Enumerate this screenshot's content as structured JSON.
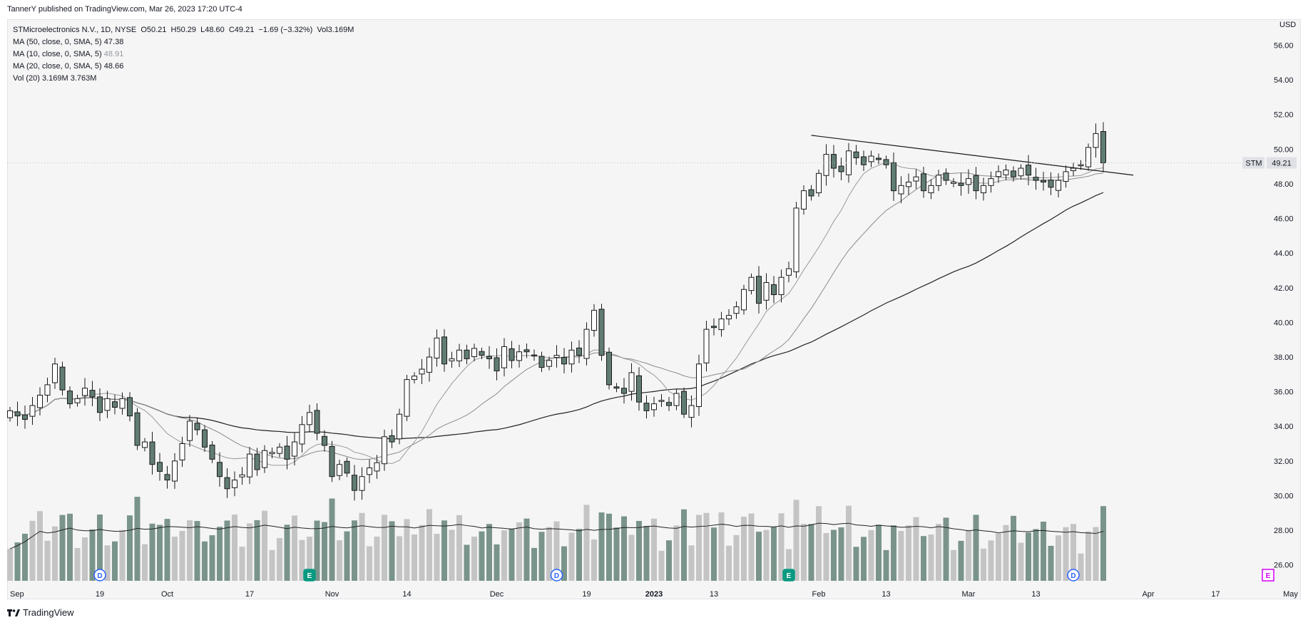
{
  "header": {
    "published_line": "TannerY published on TradingView.com, Mar 26, 2023 17:20 UTC-4"
  },
  "legend": {
    "symbol_line": "STMicroelectronics N.V., 1D, NYSE  O50.21  H50.29  L48.60  C49.21  −1.69 (−3.32%)  Vol3.169M",
    "ma50": {
      "label": "MA (50, close, 0, SMA, 5)",
      "value": "47.38"
    },
    "ma10": {
      "label": "MA (10, close, 0, SMA, 5)",
      "value": "48.91"
    },
    "ma20": {
      "label": "MA (20, close, 0, SMA, 5)",
      "value": "48.66"
    },
    "vol": {
      "label": "Vol (20)",
      "value1": "3.169M",
      "value2": "3.763M"
    }
  },
  "footer": {
    "brand": "TradingView"
  },
  "colors": {
    "background": "#f5f5f5",
    "up_body": "#ffffff",
    "down_body": "#617c73",
    "candle_outline": "#1a1a1a",
    "vol_up": "#c4c4c4",
    "vol_down": "#7a948b",
    "ma50": "#222222",
    "ma10": "#9a9a9a",
    "ma20": "#8a8a8a",
    "price_tag": "#dfe1e5",
    "dividend_badge": "#2962ff",
    "earnings_badge": "#089981",
    "future_earnings_badge": "#d500f9"
  },
  "chart_data": {
    "type": "candlestick",
    "symbol": "STM",
    "currency": "USD",
    "last_price_label": "49.21",
    "ylim": [
      25.0,
      57.5
    ],
    "y_ticks": [
      "56.00",
      "54.00",
      "52.00",
      "50.00",
      "48.00",
      "46.00",
      "44.00",
      "42.00",
      "40.00",
      "38.00",
      "36.00",
      "34.00",
      "32.00",
      "30.00",
      "28.00",
      "26.00"
    ],
    "x_labels": [
      {
        "label": "Sep",
        "index": 0
      },
      {
        "label": "19",
        "index": 12
      },
      {
        "label": "Oct",
        "index": 21
      },
      {
        "label": "17",
        "index": 32
      },
      {
        "label": "Nov",
        "index": 43
      },
      {
        "label": "14",
        "index": 53
      },
      {
        "label": "Dec",
        "index": 65
      },
      {
        "label": "19",
        "index": 77
      },
      {
        "label": "2023",
        "index": 86
      },
      {
        "label": "13",
        "index": 94
      },
      {
        "label": "Feb",
        "index": 108
      },
      {
        "label": "13",
        "index": 117
      },
      {
        "label": "Mar",
        "index": 128
      },
      {
        "label": "13",
        "index": 137
      },
      {
        "label": "Apr",
        "index": 152
      },
      {
        "label": "17",
        "index": 161
      },
      {
        "label": "May",
        "index": 171
      }
    ],
    "events": [
      {
        "type": "D",
        "index": 12
      },
      {
        "type": "E",
        "index": 40
      },
      {
        "type": "D",
        "index": 73
      },
      {
        "type": "E",
        "index": 104
      },
      {
        "type": "D",
        "index": 142
      },
      {
        "type": "E",
        "index": 168,
        "future": true
      }
    ],
    "trendline": [
      [
        107,
        50.8
      ],
      [
        150,
        48.5
      ]
    ],
    "closes": [
      34.9,
      34.6,
      34.4,
      35.2,
      35.8,
      36.4,
      37.6,
      36.1,
      35.3,
      35.6,
      36.2,
      35.7,
      34.8,
      35.6,
      35.1,
      35.6,
      34.6,
      32.9,
      33.1,
      31.8,
      31.4,
      30.9,
      32.0,
      33.0,
      34.3,
      33.8,
      32.8,
      32.1,
      31.1,
      30.4,
      30.9,
      31.2,
      32.4,
      31.5,
      32.6,
      32.5,
      32.8,
      32.1,
      33.1,
      34.1,
      34.8,
      33.6,
      32.9,
      31.1,
      31.8,
      31.3,
      30.3,
      31.1,
      31.6,
      31.9,
      33.4,
      33.1,
      34.7,
      36.7,
      36.9,
      37.3,
      38.0,
      39.1,
      37.6,
      37.9,
      38.4,
      37.9,
      38.5,
      38.1,
      37.9,
      37.2,
      38.6,
      37.8,
      38.3,
      38.3,
      38.1,
      37.4,
      37.8,
      38.1,
      37.6,
      38.4,
      38.1,
      39.6,
      40.7,
      38.1,
      36.4,
      36.2,
      35.9,
      37.1,
      35.4,
      34.9,
      35.3,
      35.5,
      35.2,
      35.9,
      34.7,
      35.2,
      37.6,
      39.6,
      39.7,
      40.2,
      40.4,
      40.9,
      41.9,
      42.6,
      41.1,
      42.3,
      41.6,
      42.6,
      43.1,
      46.6,
      47.6,
      47.3,
      48.6,
      49.7,
      48.9,
      48.7,
      49.9,
      49.5,
      49.1,
      49.6,
      49.4,
      49.1,
      47.6,
      47.9,
      48.1,
      48.4,
      47.6,
      47.9,
      48.5,
      48.2,
      48.1,
      47.9,
      48.3,
      47.6,
      47.9,
      48.3,
      48.7,
      48.8,
      48.4,
      48.9,
      48.5,
      48.2,
      48.1,
      47.8,
      48.2,
      48.7,
      48.9,
      49.1,
      50.1,
      50.9,
      49.21
    ],
    "volume_label": "Vol 3.169M",
    "series": [
      {
        "name": "MA (50, close, 0, SMA, 5)",
        "value": 47.38
      },
      {
        "name": "MA (10, close, 0, SMA, 5)",
        "value": 48.91
      },
      {
        "name": "MA (20, close, 0, SMA, 5)",
        "value": 48.66
      },
      {
        "name": "Vol (20)",
        "value": 3.763
      }
    ]
  }
}
